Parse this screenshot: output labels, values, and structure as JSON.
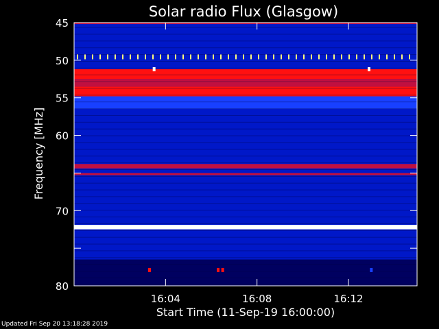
{
  "footer_text": "Updated Fri Sep 20 13:18:28 2019",
  "chart_data": {
    "type": "heatmap",
    "title": "Solar radio Flux (Glasgow)",
    "xlabel": "Start Time (11-Sep-19 16:00:00)",
    "ylabel": "Frequency [MHz]",
    "x_unit": "minutes after 16:00:00",
    "xlim": [
      0,
      15
    ],
    "ylim": [
      45,
      80
    ],
    "y_inverted": true,
    "x_ticks": [
      {
        "value": 4,
        "label": "16:04"
      },
      {
        "value": 8,
        "label": "16:08"
      },
      {
        "value": 12,
        "label": "16:12"
      }
    ],
    "y_ticks": [
      {
        "value": 45,
        "label": "45"
      },
      {
        "value": 50,
        "label": "50"
      },
      {
        "value": 55,
        "label": "55"
      },
      {
        "value": 60,
        "label": "60"
      },
      {
        "value": 65,
        "label": ""
      },
      {
        "value": 70,
        "label": "70"
      },
      {
        "value": 75,
        "label": ""
      },
      {
        "value": 80,
        "label": "80"
      }
    ],
    "colorscale": [
      "#000060",
      "#0018c8",
      "#1840ff",
      "#c01040",
      "#ff1010",
      "#ffff80",
      "#ffffff"
    ],
    "intensity_bands": [
      {
        "freq_min": 45.0,
        "freq_max": 45.2,
        "level": 3
      },
      {
        "freq_min": 45.2,
        "freq_max": 49.0,
        "level": 1
      },
      {
        "freq_min": 49.0,
        "freq_max": 50.0,
        "level": 1
      },
      {
        "freq_min": 50.0,
        "freq_max": 51.2,
        "level": 1
      },
      {
        "freq_min": 51.2,
        "freq_max": 52.5,
        "level": 4
      },
      {
        "freq_min": 52.5,
        "freq_max": 53.5,
        "level": 3
      },
      {
        "freq_min": 53.5,
        "freq_max": 54.8,
        "level": 4
      },
      {
        "freq_min": 54.8,
        "freq_max": 56.5,
        "level": 2
      },
      {
        "freq_min": 56.5,
        "freq_max": 63.8,
        "level": 1
      },
      {
        "freq_min": 63.8,
        "freq_max": 64.4,
        "level": 3
      },
      {
        "freq_min": 64.4,
        "freq_max": 65.0,
        "level": 1
      },
      {
        "freq_min": 65.0,
        "freq_max": 65.3,
        "level": 3
      },
      {
        "freq_min": 65.3,
        "freq_max": 71.9,
        "level": 1
      },
      {
        "freq_min": 71.9,
        "freq_max": 72.5,
        "level": 6
      },
      {
        "freq_min": 72.5,
        "freq_max": 76.5,
        "level": 1
      },
      {
        "freq_min": 76.5,
        "freq_max": 80.0,
        "level": 0
      }
    ],
    "periodic_spikes": {
      "frequency": 49.6,
      "start_time": 0.15,
      "interval_minutes": 0.33,
      "level": 5
    },
    "bursts": [
      {
        "time": 3.5,
        "frequency": 51.2,
        "level": 6
      },
      {
        "time": 12.9,
        "frequency": 51.2,
        "level": 6
      },
      {
        "time": 3.3,
        "frequency": 77.9,
        "level": 4
      },
      {
        "time": 6.3,
        "frequency": 77.9,
        "level": 4
      },
      {
        "time": 6.5,
        "frequency": 77.9,
        "level": 4
      },
      {
        "time": 13.0,
        "frequency": 77.9,
        "level": 2
      }
    ]
  }
}
